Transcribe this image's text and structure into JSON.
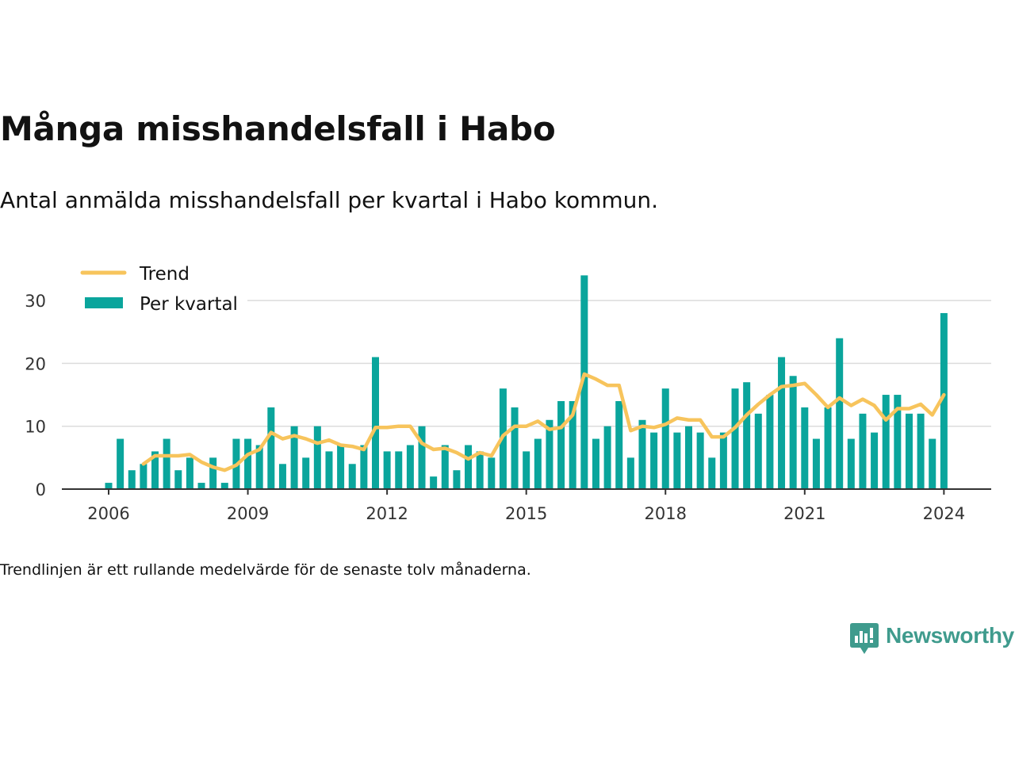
{
  "title": "Många misshandelsfall i Habo",
  "subtitle": "Antal anmälda misshandelsfall per kvartal i Habo kommun.",
  "note": "Trendlinjen är ett rullande medelvärde för de senaste tolv månaderna.",
  "brand": {
    "name": "Newsworthy",
    "icon": "newsworthy-logo-icon",
    "color": "#3f9b8d"
  },
  "chart_data": {
    "type": "bar",
    "title": "Många misshandelsfall i Habo",
    "ylim": [
      0,
      34
    ],
    "yticks": [
      0,
      10,
      20,
      30
    ],
    "xticks": [
      "2006",
      "2009",
      "2012",
      "2015",
      "2018",
      "2021",
      "2024"
    ],
    "grid": true,
    "legend_position": "top-left",
    "categories": [
      "2006 Q1",
      "2006 Q2",
      "2006 Q3",
      "2006 Q4",
      "2007 Q1",
      "2007 Q2",
      "2007 Q3",
      "2007 Q4",
      "2008 Q1",
      "2008 Q2",
      "2008 Q3",
      "2008 Q4",
      "2009 Q1",
      "2009 Q2",
      "2009 Q3",
      "2009 Q4",
      "2010 Q1",
      "2010 Q2",
      "2010 Q3",
      "2010 Q4",
      "2011 Q1",
      "2011 Q2",
      "2011 Q3",
      "2011 Q4",
      "2012 Q1",
      "2012 Q2",
      "2012 Q3",
      "2012 Q4",
      "2013 Q1",
      "2013 Q2",
      "2013 Q3",
      "2013 Q4",
      "2014 Q1",
      "2014 Q2",
      "2014 Q3",
      "2014 Q4",
      "2015 Q1",
      "2015 Q2",
      "2015 Q3",
      "2015 Q4",
      "2016 Q1",
      "2016 Q2",
      "2016 Q3",
      "2016 Q4",
      "2017 Q1",
      "2017 Q2",
      "2017 Q3",
      "2017 Q4",
      "2018 Q1",
      "2018 Q2",
      "2018 Q3",
      "2018 Q4",
      "2019 Q1",
      "2019 Q2",
      "2019 Q3",
      "2019 Q4",
      "2020 Q1",
      "2020 Q2",
      "2020 Q3",
      "2020 Q4",
      "2021 Q1",
      "2021 Q2",
      "2021 Q3",
      "2021 Q4",
      "2022 Q1",
      "2022 Q2",
      "2022 Q3",
      "2022 Q4",
      "2023 Q1",
      "2023 Q2",
      "2023 Q3",
      "2023 Q4",
      "2024 Q1"
    ],
    "series": [
      {
        "name": "Per kvartal",
        "kind": "bar",
        "color": "#0aa59c",
        "values": [
          1,
          8,
          3,
          4,
          6,
          8,
          3,
          5,
          1,
          5,
          1,
          8,
          8,
          7,
          13,
          4,
          10,
          5,
          10,
          6,
          7,
          4,
          7,
          21,
          6,
          6,
          7,
          10,
          2,
          7,
          3,
          7,
          6,
          5,
          16,
          13,
          6,
          8,
          11,
          14,
          14,
          34,
          8,
          10,
          14,
          5,
          11,
          9,
          16,
          9,
          10,
          9,
          5,
          9,
          16,
          17,
          12,
          15,
          21,
          18,
          13,
          8,
          13,
          24,
          8,
          12,
          9,
          15,
          15,
          12,
          12,
          8,
          28
        ]
      },
      {
        "name": "Trend",
        "kind": "line",
        "color": "#f7c45c",
        "values": [
          null,
          null,
          null,
          4.0,
          5.3,
          5.3,
          5.3,
          5.5,
          4.3,
          3.5,
          3.0,
          3.8,
          5.5,
          6.3,
          9.0,
          8.0,
          8.5,
          8.0,
          7.3,
          7.8,
          7.0,
          6.8,
          6.3,
          9.8,
          9.8,
          10.0,
          10.0,
          7.3,
          6.3,
          6.5,
          5.8,
          4.8,
          5.8,
          5.3,
          8.5,
          10.0,
          10.0,
          10.8,
          9.5,
          9.8,
          11.8,
          18.3,
          17.5,
          16.5,
          16.5,
          9.3,
          10.0,
          9.8,
          10.3,
          11.3,
          11.0,
          11.0,
          8.3,
          8.3,
          9.8,
          11.8,
          13.5,
          15.0,
          16.3,
          16.5,
          16.8,
          15.0,
          13.0,
          14.5,
          13.3,
          14.3,
          13.3,
          11.0,
          12.8,
          12.8,
          13.5,
          11.8,
          15.0
        ]
      }
    ]
  }
}
